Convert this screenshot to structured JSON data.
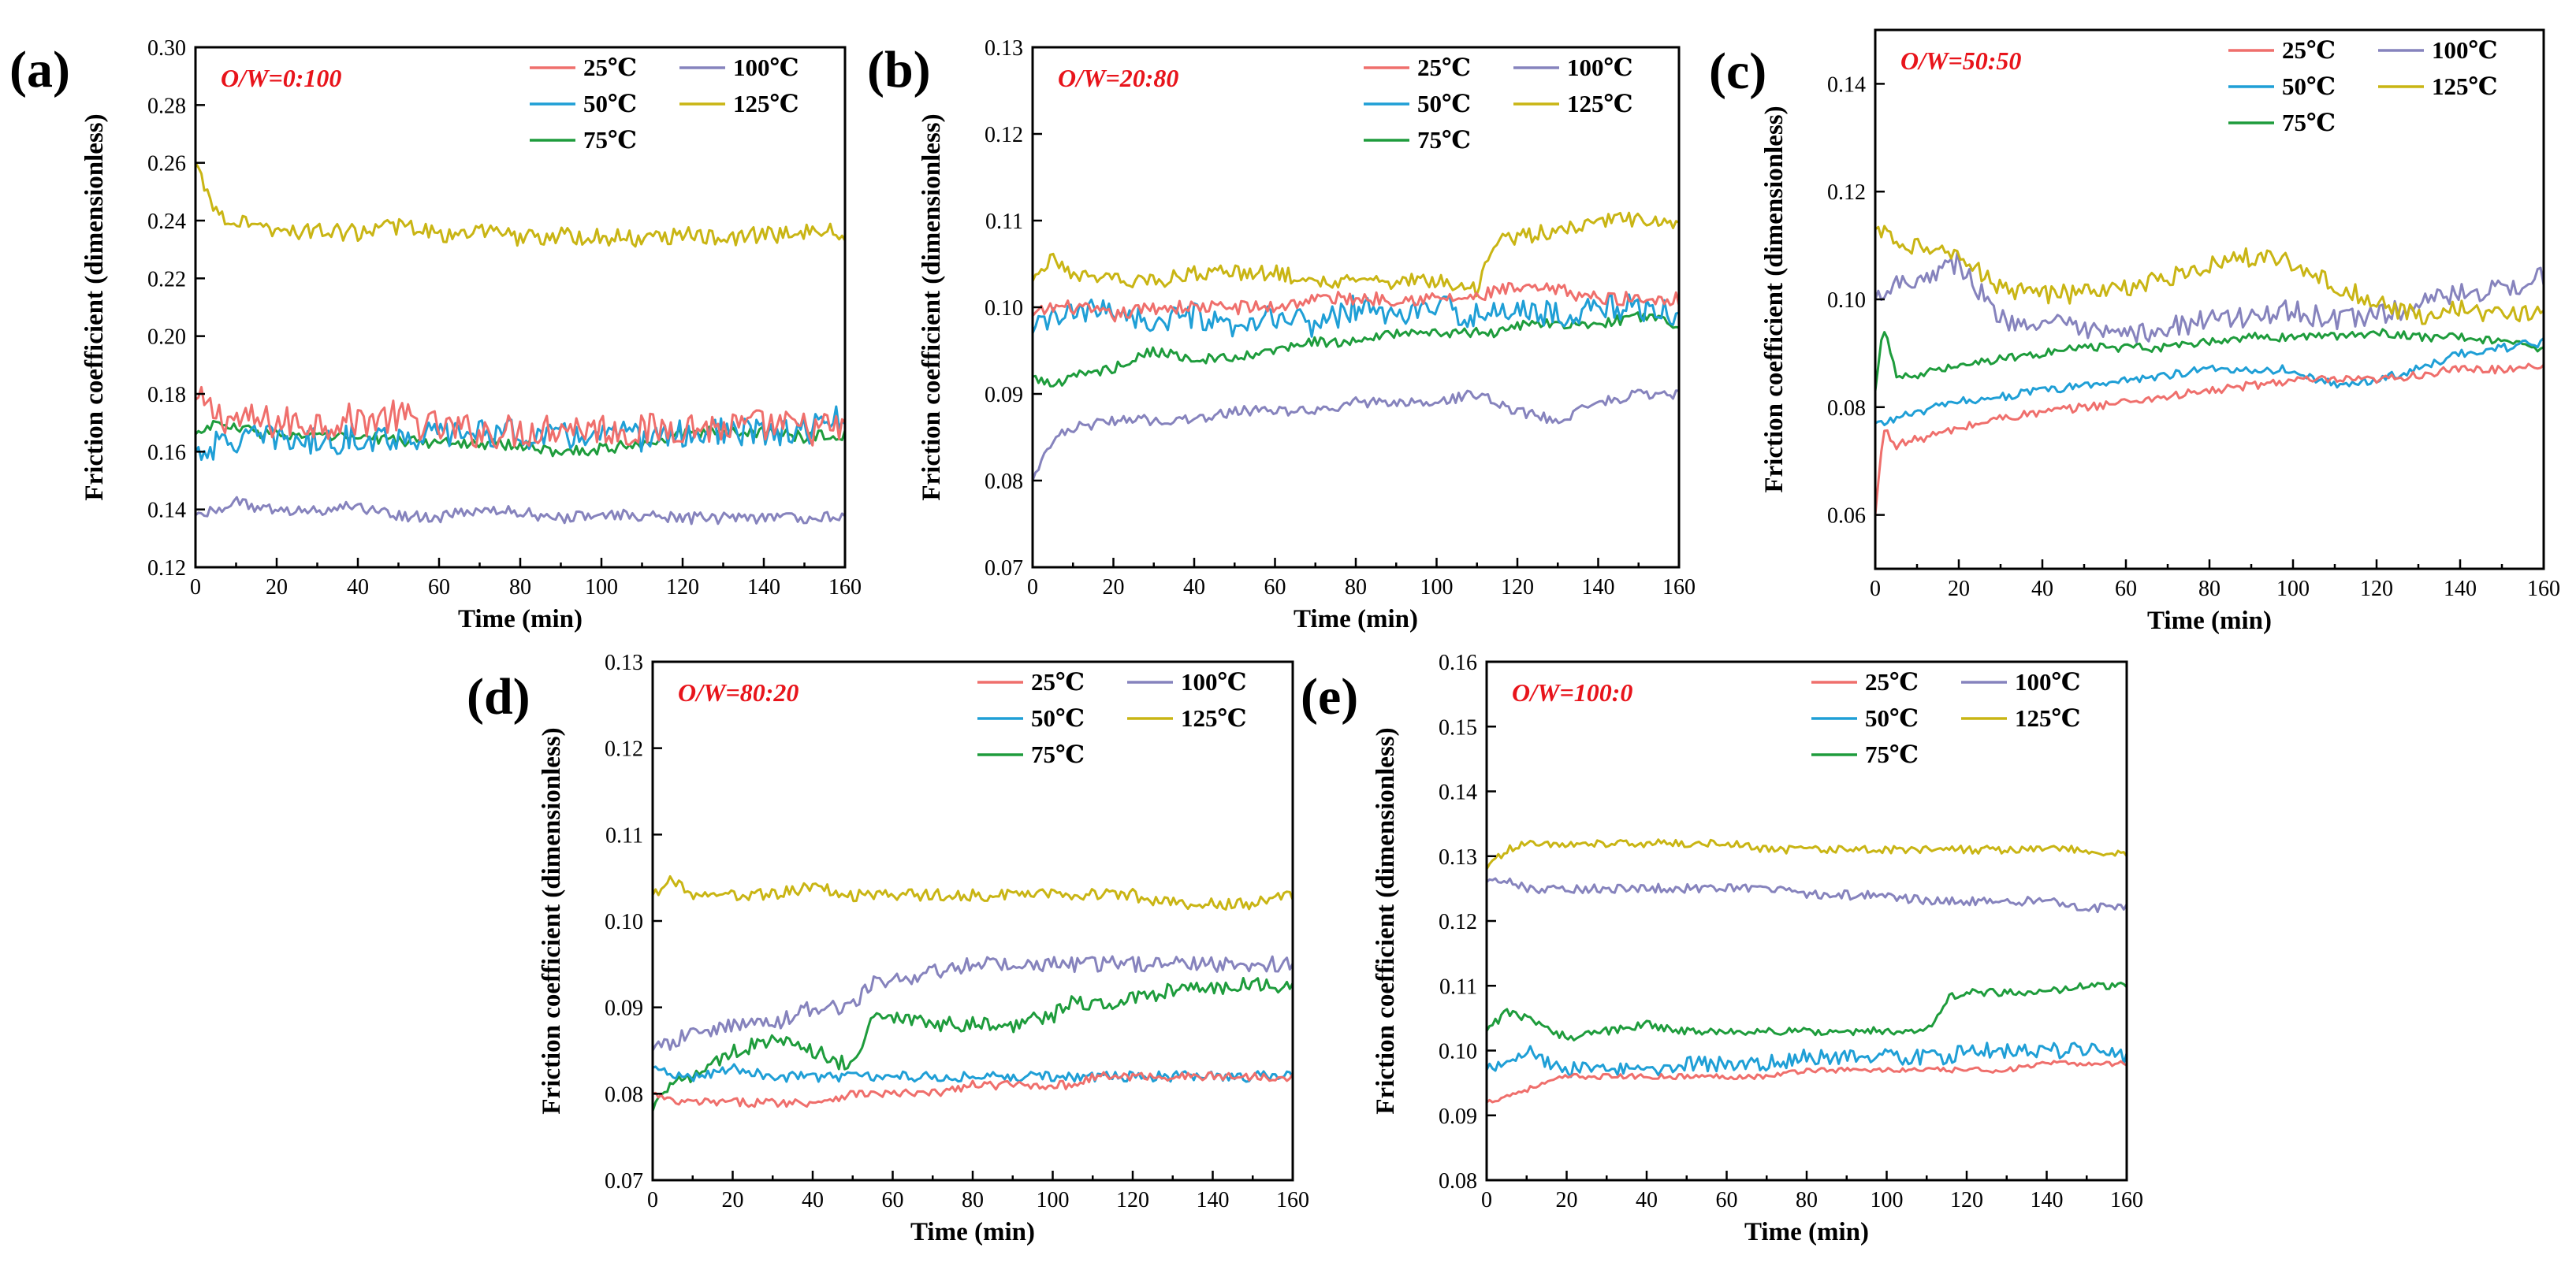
{
  "colors": {
    "25C": "#ef6f6c",
    "50C": "#1f9fd6",
    "75C": "#1e9c3c",
    "100C": "#8683bd",
    "125C": "#c9b514",
    "ratio_text": "#e8141b"
  },
  "legend_labels": [
    "25℃",
    "50℃",
    "75℃",
    "100℃",
    "125℃"
  ],
  "chart_data": [
    {
      "type": "line",
      "panel": "(a)",
      "title": "O/W=0:100",
      "xlabel": "Time (min)",
      "ylabel": "Friction coefficient (dimensionless)",
      "xlim": [
        0,
        160
      ],
      "ylim": [
        0.12,
        0.3
      ],
      "xticks": [
        0,
        20,
        40,
        60,
        80,
        100,
        120,
        140,
        160
      ],
      "yticks": [
        0.12,
        0.14,
        0.16,
        0.18,
        0.2,
        0.22,
        0.24,
        0.26,
        0.28,
        0.3
      ],
      "ytick_labels": [
        "0.12",
        "0.14",
        "0.16",
        "0.18",
        "0.20",
        "0.22",
        "0.24",
        "0.26",
        "0.28",
        "0.30"
      ],
      "x": [
        0,
        5,
        10,
        20,
        30,
        40,
        50,
        60,
        70,
        80,
        90,
        100,
        110,
        120,
        130,
        140,
        150,
        160
      ],
      "series": [
        {
          "name": "25℃",
          "key": "25C",
          "values": [
            0.178,
            0.173,
            0.171,
            0.17,
            0.17,
            0.171,
            0.172,
            0.168,
            0.167,
            0.167,
            0.169,
            0.168,
            0.167,
            0.169,
            0.168,
            0.169,
            0.168,
            0.168
          ],
          "noise": 0.006
        },
        {
          "name": "50℃",
          "key": "50C",
          "values": [
            0.16,
            0.162,
            0.164,
            0.165,
            0.163,
            0.165,
            0.165,
            0.166,
            0.167,
            0.166,
            0.165,
            0.166,
            0.165,
            0.166,
            0.167,
            0.166,
            0.167,
            0.172
          ],
          "noise": 0.005
        },
        {
          "name": "75℃",
          "key": "75C",
          "values": [
            0.166,
            0.17,
            0.168,
            0.166,
            0.165,
            0.165,
            0.164,
            0.163,
            0.163,
            0.162,
            0.16,
            0.161,
            0.163,
            0.166,
            0.167,
            0.167,
            0.165,
            0.166
          ],
          "noise": 0.002
        },
        {
          "name": "100℃",
          "key": "100C",
          "values": [
            0.138,
            0.14,
            0.143,
            0.139,
            0.14,
            0.141,
            0.138,
            0.137,
            0.14,
            0.139,
            0.137,
            0.138,
            0.138,
            0.137,
            0.137,
            0.137,
            0.137,
            0.138
          ],
          "noise": 0.002
        },
        {
          "name": "125℃",
          "key": "125C",
          "values": [
            0.26,
            0.243,
            0.24,
            0.237,
            0.236,
            0.236,
            0.238,
            0.235,
            0.236,
            0.234,
            0.235,
            0.234,
            0.234,
            0.235,
            0.234,
            0.235,
            0.236,
            0.236
          ],
          "noise": 0.003
        }
      ]
    },
    {
      "type": "line",
      "panel": "(b)",
      "title": "O/W=20:80",
      "xlabel": "Time (min)",
      "ylabel": "Friction coefficient (dimensionless)",
      "xlim": [
        0,
        160
      ],
      "ylim": [
        0.07,
        0.13
      ],
      "xticks": [
        0,
        20,
        40,
        60,
        80,
        100,
        120,
        140,
        160
      ],
      "yticks": [
        0.07,
        0.08,
        0.09,
        0.1,
        0.11,
        0.12,
        0.13
      ],
      "ytick_labels": [
        "0.07",
        "0.08",
        "0.09",
        "0.10",
        "0.11",
        "0.12",
        "0.13"
      ],
      "x": [
        0,
        5,
        10,
        20,
        30,
        40,
        50,
        60,
        70,
        80,
        90,
        100,
        110,
        115,
        120,
        130,
        140,
        150,
        160
      ],
      "series": [
        {
          "name": "25℃",
          "key": "25C",
          "values": [
            0.099,
            0.1,
            0.1,
            0.099,
            0.1,
            0.1,
            0.1,
            0.1,
            0.101,
            0.101,
            0.101,
            0.101,
            0.101,
            0.102,
            0.102,
            0.102,
            0.101,
            0.101,
            0.101
          ],
          "noise": 0.0008
        },
        {
          "name": "50℃",
          "key": "50C",
          "values": [
            0.097,
            0.099,
            0.099,
            0.1,
            0.098,
            0.099,
            0.097,
            0.099,
            0.098,
            0.1,
            0.099,
            0.1,
            0.099,
            0.099,
            0.1,
            0.099,
            0.1,
            0.1,
            0.099
          ],
          "noise": 0.0015
        },
        {
          "name": "75℃",
          "key": "75C",
          "values": [
            0.092,
            0.091,
            0.092,
            0.093,
            0.095,
            0.094,
            0.094,
            0.095,
            0.096,
            0.096,
            0.097,
            0.097,
            0.097,
            0.097,
            0.098,
            0.098,
            0.098,
            0.099,
            0.098
          ],
          "noise": 0.0006
        },
        {
          "name": "100℃",
          "key": "100C",
          "values": [
            0.08,
            0.085,
            0.086,
            0.087,
            0.087,
            0.087,
            0.088,
            0.088,
            0.088,
            0.089,
            0.089,
            0.089,
            0.09,
            0.089,
            0.088,
            0.087,
            0.089,
            0.09,
            0.09
          ],
          "noise": 0.0006
        },
        {
          "name": "125℃",
          "key": "125C",
          "values": [
            0.103,
            0.106,
            0.104,
            0.103,
            0.103,
            0.104,
            0.104,
            0.104,
            0.103,
            0.103,
            0.103,
            0.103,
            0.102,
            0.108,
            0.108,
            0.109,
            0.11,
            0.11,
            0.11
          ],
          "noise": 0.0009
        }
      ]
    },
    {
      "type": "line",
      "panel": "(c)",
      "title": "O/W=50:50",
      "xlabel": "Time (min)",
      "ylabel": "Friction coefficient (dimensionless)",
      "xlim": [
        0,
        160
      ],
      "ylim": [
        0.05,
        0.15
      ],
      "xticks": [
        0,
        20,
        40,
        60,
        80,
        100,
        120,
        140,
        160
      ],
      "yticks": [
        0.06,
        0.08,
        0.1,
        0.12,
        0.14
      ],
      "ytick_labels": [
        "0.06",
        "0.08",
        "0.10",
        "0.12",
        "0.14"
      ],
      "x": [
        0,
        2,
        5,
        10,
        20,
        30,
        40,
        50,
        60,
        70,
        80,
        90,
        100,
        110,
        120,
        130,
        140,
        150,
        160
      ],
      "series": [
        {
          "name": "25℃",
          "key": "25C",
          "values": [
            0.06,
            0.076,
            0.073,
            0.074,
            0.076,
            0.078,
            0.079,
            0.08,
            0.081,
            0.082,
            0.083,
            0.084,
            0.085,
            0.085,
            0.085,
            0.086,
            0.087,
            0.087,
            0.088
          ],
          "noise": 0.0008
        },
        {
          "name": "50℃",
          "key": "50C",
          "values": [
            0.077,
            0.077,
            0.078,
            0.079,
            0.081,
            0.082,
            0.083,
            0.084,
            0.085,
            0.086,
            0.087,
            0.087,
            0.087,
            0.084,
            0.085,
            0.087,
            0.09,
            0.091,
            0.092
          ],
          "noise": 0.0008
        },
        {
          "name": "75℃",
          "key": "75C",
          "values": [
            0.083,
            0.095,
            0.086,
            0.086,
            0.088,
            0.089,
            0.09,
            0.091,
            0.091,
            0.091,
            0.092,
            0.093,
            0.093,
            0.093,
            0.094,
            0.093,
            0.093,
            0.092,
            0.091
          ],
          "noise": 0.0008
        },
        {
          "name": "100℃",
          "key": "100C",
          "values": [
            0.1,
            0.102,
            0.103,
            0.104,
            0.107,
            0.096,
            0.096,
            0.094,
            0.093,
            0.095,
            0.096,
            0.097,
            0.098,
            0.096,
            0.097,
            0.099,
            0.101,
            0.102,
            0.104
          ],
          "noise": 0.002
        },
        {
          "name": "125℃",
          "key": "125C",
          "values": [
            0.113,
            0.112,
            0.111,
            0.11,
            0.108,
            0.102,
            0.101,
            0.101,
            0.102,
            0.104,
            0.106,
            0.108,
            0.107,
            0.103,
            0.099,
            0.097,
            0.098,
            0.097,
            0.097
          ],
          "noise": 0.0018
        }
      ]
    },
    {
      "type": "line",
      "panel": "(d)",
      "title": "O/W=80:20",
      "xlabel": "Time (min)",
      "ylabel": "Friction coefficient (dimensionless)",
      "xlim": [
        0,
        160
      ],
      "ylim": [
        0.07,
        0.13
      ],
      "xticks": [
        0,
        20,
        40,
        60,
        80,
        100,
        120,
        140,
        160
      ],
      "yticks": [
        0.07,
        0.08,
        0.09,
        0.1,
        0.11,
        0.12,
        0.13
      ],
      "ytick_labels": [
        "0.07",
        "0.08",
        "0.09",
        "0.10",
        "0.11",
        "0.12",
        "0.13"
      ],
      "x": [
        0,
        5,
        10,
        20,
        30,
        40,
        50,
        55,
        60,
        70,
        80,
        90,
        100,
        105,
        110,
        120,
        130,
        140,
        150,
        160
      ],
      "series": [
        {
          "name": "25℃",
          "key": "25C",
          "values": [
            0.08,
            0.079,
            0.079,
            0.079,
            0.079,
            0.079,
            0.08,
            0.08,
            0.08,
            0.08,
            0.081,
            0.081,
            0.081,
            0.081,
            0.082,
            0.082,
            0.082,
            0.082,
            0.082,
            0.082
          ],
          "noise": 0.0005
        },
        {
          "name": "50℃",
          "key": "50C",
          "values": [
            0.083,
            0.082,
            0.082,
            0.083,
            0.082,
            0.082,
            0.082,
            0.082,
            0.082,
            0.082,
            0.082,
            0.082,
            0.082,
            0.082,
            0.082,
            0.082,
            0.082,
            0.082,
            0.082,
            0.082
          ],
          "noise": 0.0006
        },
        {
          "name": "75℃",
          "key": "75C",
          "values": [
            0.078,
            0.082,
            0.082,
            0.085,
            0.086,
            0.085,
            0.083,
            0.089,
            0.089,
            0.088,
            0.088,
            0.088,
            0.089,
            0.091,
            0.09,
            0.091,
            0.092,
            0.092,
            0.093,
            0.092
          ],
          "noise": 0.0009
        },
        {
          "name": "100℃",
          "key": "100C",
          "values": [
            0.085,
            0.086,
            0.087,
            0.088,
            0.088,
            0.09,
            0.09,
            0.093,
            0.093,
            0.094,
            0.095,
            0.095,
            0.095,
            0.095,
            0.095,
            0.095,
            0.095,
            0.095,
            0.095,
            0.095
          ],
          "noise": 0.0009
        },
        {
          "name": "125℃",
          "key": "125C",
          "values": [
            0.103,
            0.105,
            0.103,
            0.103,
            0.103,
            0.104,
            0.103,
            0.103,
            0.103,
            0.103,
            0.103,
            0.103,
            0.103,
            0.103,
            0.103,
            0.103,
            0.102,
            0.102,
            0.102,
            0.103
          ],
          "noise": 0.0007
        }
      ]
    },
    {
      "type": "line",
      "panel": "(e)",
      "title": "O/W=100:0",
      "xlabel": "Time (min)",
      "ylabel": "Friction coefficient (dimensionless)",
      "xlim": [
        0,
        160
      ],
      "ylim": [
        0.08,
        0.16
      ],
      "xticks": [
        0,
        20,
        40,
        60,
        80,
        100,
        120,
        140,
        160
      ],
      "yticks": [
        0.08,
        0.09,
        0.1,
        0.11,
        0.12,
        0.13,
        0.14,
        0.15,
        0.16
      ],
      "ytick_labels": [
        "0.08",
        "0.09",
        "0.10",
        "0.11",
        "0.12",
        "0.13",
        "0.14",
        "0.15",
        "0.16"
      ],
      "x": [
        0,
        5,
        10,
        20,
        30,
        40,
        50,
        60,
        70,
        80,
        90,
        100,
        110,
        115,
        120,
        130,
        140,
        150,
        160
      ],
      "series": [
        {
          "name": "25℃",
          "key": "25C",
          "values": [
            0.092,
            0.093,
            0.094,
            0.096,
            0.096,
            0.096,
            0.096,
            0.096,
            0.096,
            0.097,
            0.097,
            0.097,
            0.097,
            0.097,
            0.097,
            0.097,
            0.098,
            0.098,
            0.098
          ],
          "noise": 0.0004
        },
        {
          "name": "50℃",
          "key": "50C",
          "values": [
            0.097,
            0.099,
            0.1,
            0.097,
            0.097,
            0.097,
            0.098,
            0.098,
            0.098,
            0.099,
            0.099,
            0.099,
            0.099,
            0.099,
            0.1,
            0.1,
            0.1,
            0.1,
            0.099
          ],
          "noise": 0.0012
        },
        {
          "name": "75℃",
          "key": "75C",
          "values": [
            0.103,
            0.106,
            0.105,
            0.102,
            0.103,
            0.104,
            0.103,
            0.103,
            0.103,
            0.103,
            0.103,
            0.103,
            0.103,
            0.108,
            0.109,
            0.109,
            0.109,
            0.11,
            0.11
          ],
          "noise": 0.0006
        },
        {
          "name": "100℃",
          "key": "100C",
          "values": [
            0.126,
            0.126,
            0.125,
            0.125,
            0.125,
            0.125,
            0.125,
            0.125,
            0.125,
            0.124,
            0.124,
            0.124,
            0.123,
            0.123,
            0.123,
            0.123,
            0.123,
            0.122,
            0.122
          ],
          "noise": 0.0007
        },
        {
          "name": "125℃",
          "key": "125C",
          "values": [
            0.128,
            0.131,
            0.132,
            0.132,
            0.132,
            0.132,
            0.132,
            0.132,
            0.131,
            0.131,
            0.131,
            0.131,
            0.131,
            0.131,
            0.131,
            0.131,
            0.131,
            0.131,
            0.13
          ],
          "noise": 0.0006
        }
      ]
    }
  ]
}
